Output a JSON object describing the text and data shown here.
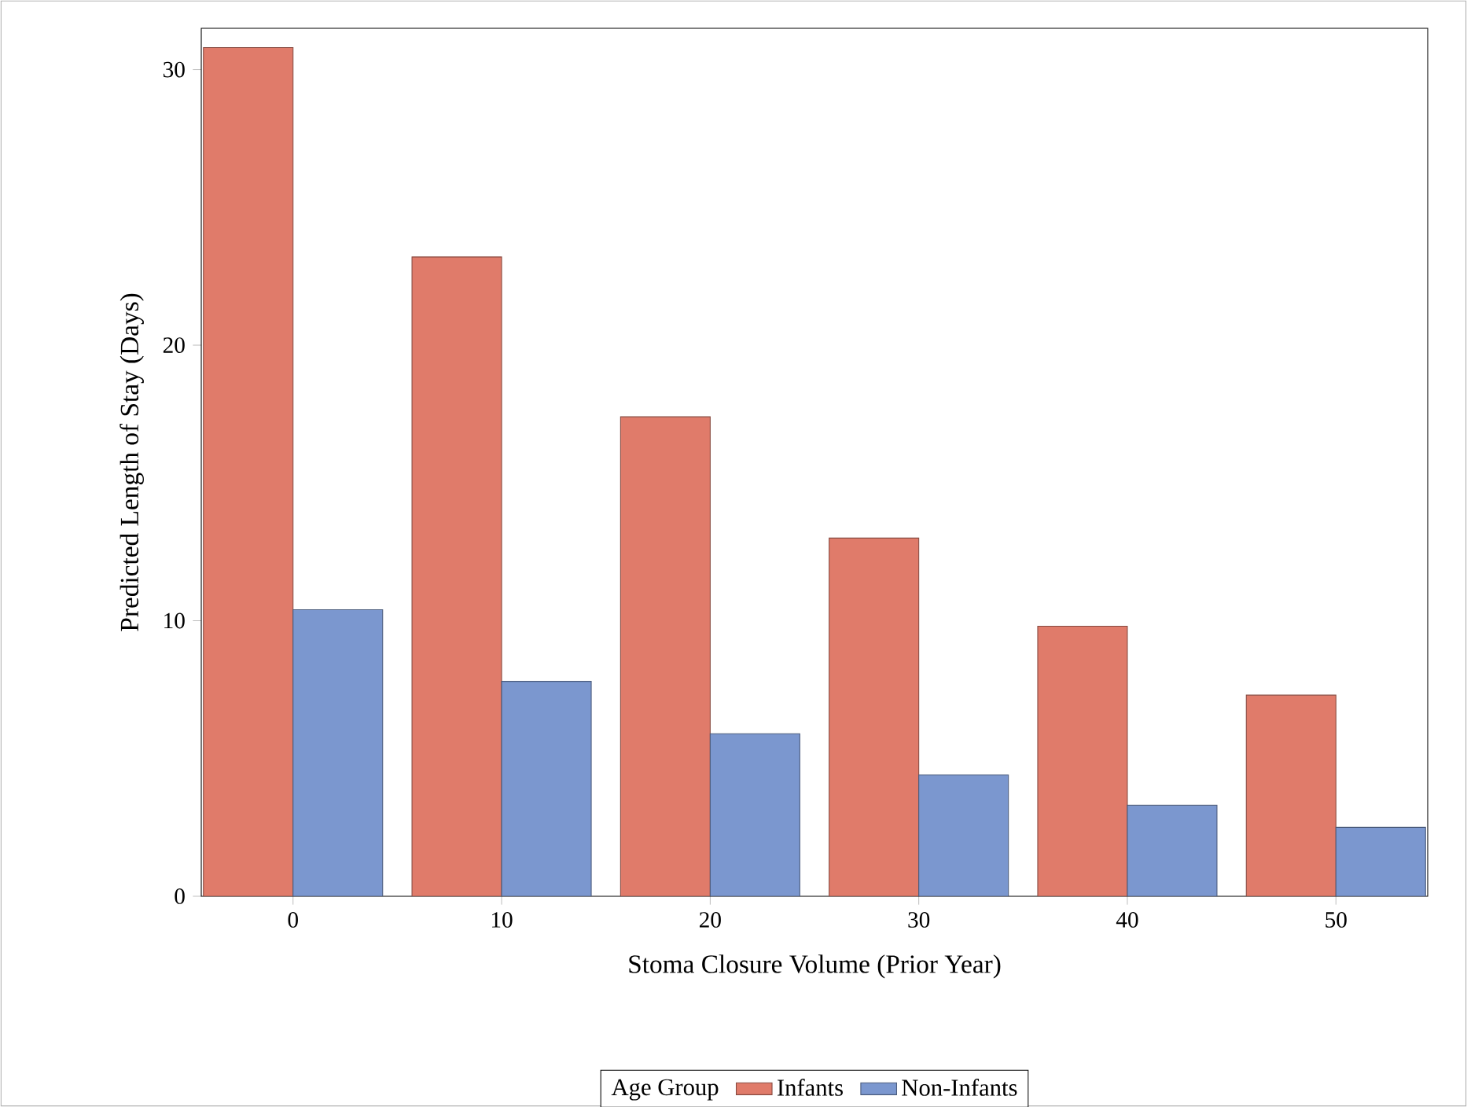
{
  "chart_data": {
    "type": "bar",
    "xlabel": "Stoma Closure Volume (Prior Year)",
    "ylabel": "Predicted Length of Stay (Days)",
    "legend_title": "Age Group",
    "categories": [
      "0",
      "10",
      "20",
      "30",
      "40",
      "50"
    ],
    "series": [
      {
        "name": "Infants",
        "color": "#e07b6a",
        "values": [
          30.8,
          23.2,
          17.4,
          13.0,
          9.8,
          7.3
        ]
      },
      {
        "name": "Non-Infants",
        "color": "#7b97cf",
        "values": [
          10.4,
          7.8,
          5.9,
          4.4,
          3.3,
          2.5
        ]
      }
    ],
    "ylim": [
      0,
      31.5
    ],
    "yticks": [
      0,
      10,
      20,
      30
    ],
    "grid": false,
    "legend": "bottom"
  }
}
